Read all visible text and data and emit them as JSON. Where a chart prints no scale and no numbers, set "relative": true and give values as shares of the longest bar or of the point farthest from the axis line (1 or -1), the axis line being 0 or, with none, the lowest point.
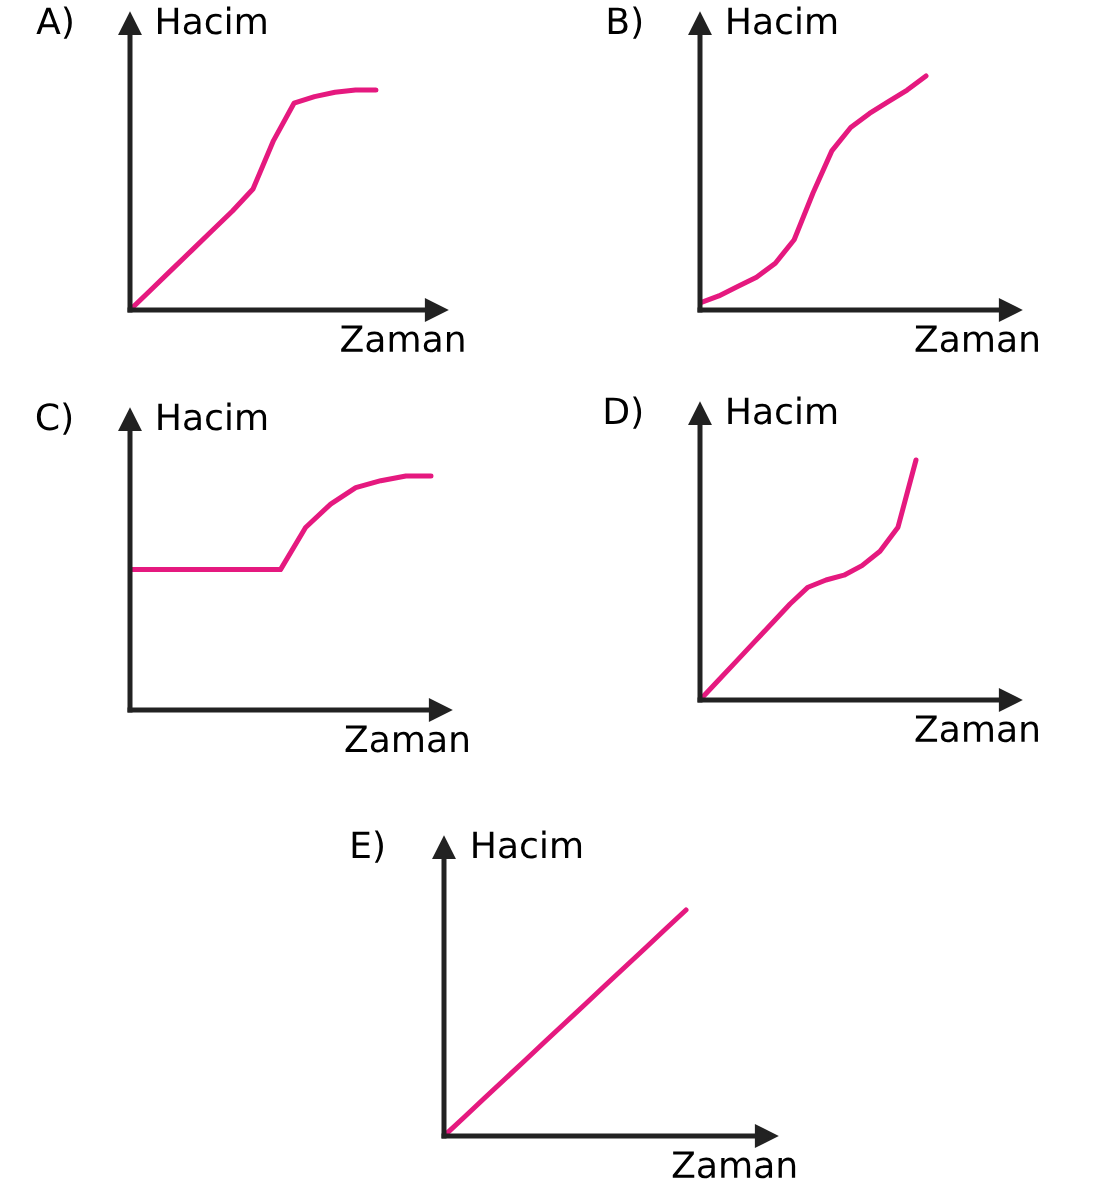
{
  "chart_data": [
    {
      "type": "line",
      "title": "A)",
      "ylabel": "Hacim",
      "xlabel": "Zaman",
      "relative": true,
      "tick_labels": false,
      "categories": [
        null,
        null,
        null,
        null,
        null,
        null,
        null,
        null,
        null,
        null,
        null,
        null,
        null
      ],
      "series": [
        {
          "color": "#e5197f",
          "values": [
            0,
            0.09,
            0.18,
            0.27,
            0.36,
            0.45,
            0.55,
            0.77,
            0.94,
            0.97,
            0.99,
            1.0,
            1.0
          ]
        }
      ]
    },
    {
      "type": "line",
      "title": "B)",
      "ylabel": "Hacim",
      "xlabel": "Zaman",
      "relative": true,
      "tick_labels": false,
      "categories": [
        null,
        null,
        null,
        null,
        null,
        null,
        null,
        null,
        null,
        null,
        null,
        null,
        null
      ],
      "series": [
        {
          "color": "#e5197f",
          "values": [
            0.03,
            0.06,
            0.1,
            0.14,
            0.2,
            0.3,
            0.5,
            0.68,
            0.78,
            0.84,
            0.89,
            0.94,
            1.0
          ]
        }
      ]
    },
    {
      "type": "line",
      "title": "C)",
      "ylabel": "Hacim",
      "xlabel": "Zaman",
      "relative": true,
      "tick_labels": false,
      "categories": [
        null,
        null,
        null,
        null,
        null,
        null,
        null,
        null,
        null,
        null,
        null,
        null,
        null
      ],
      "series": [
        {
          "color": "#e5197f",
          "values": [
            0.6,
            0.6,
            0.6,
            0.6,
            0.6,
            0.6,
            0.6,
            0.78,
            0.88,
            0.95,
            0.98,
            1.0,
            1.0
          ]
        }
      ]
    },
    {
      "type": "line",
      "title": "D)",
      "ylabel": "Hacim",
      "xlabel": "Zaman",
      "relative": true,
      "tick_labels": false,
      "categories": [
        null,
        null,
        null,
        null,
        null,
        null,
        null,
        null,
        null,
        null,
        null,
        null,
        null
      ],
      "series": [
        {
          "color": "#e5197f",
          "values": [
            0,
            0.08,
            0.16,
            0.24,
            0.32,
            0.4,
            0.47,
            0.5,
            0.52,
            0.56,
            0.62,
            0.72,
            1.0
          ]
        }
      ]
    },
    {
      "type": "line",
      "title": "E)",
      "ylabel": "Hacim",
      "xlabel": "Zaman",
      "relative": true,
      "tick_labels": false,
      "categories": [
        null,
        null,
        null,
        null,
        null,
        null,
        null,
        null,
        null,
        null,
        null,
        null,
        null
      ],
      "series": [
        {
          "color": "#e5197f",
          "values": [
            0,
            0.083,
            0.167,
            0.25,
            0.333,
            0.417,
            0.5,
            0.583,
            0.667,
            0.75,
            0.833,
            0.917,
            1.0
          ]
        }
      ]
    }
  ]
}
